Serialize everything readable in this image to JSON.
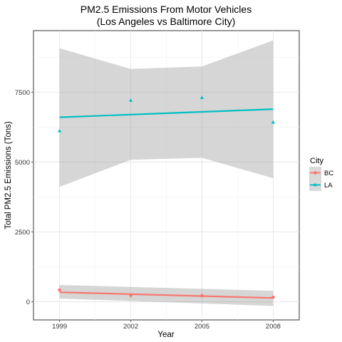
{
  "chart_data": {
    "type": "scatter",
    "title_line1": "PM2.5 Emissions From Motor Vehicles",
    "title_line2": "(Los Angeles vs Baltimore City)",
    "xlabel": "Year",
    "ylabel": "Total PM2.5 Emissions (Tons)",
    "x_ticks": [
      1999,
      2002,
      2005,
      2008
    ],
    "x_tick_labels": [
      "1999",
      "2002",
      "2005",
      "2008"
    ],
    "y_ticks": [
      0,
      2500,
      5000,
      7500
    ],
    "y_tick_labels": [
      "0",
      "2500",
      "5000",
      "7500"
    ],
    "xlim": [
      1997.9,
      2009.1
    ],
    "ylim": [
      -650,
      9700
    ],
    "grid": true,
    "legend": {
      "title": "City",
      "position": "right"
    },
    "series": [
      {
        "name": "BC",
        "color": "#F8766D",
        "marker": "circle",
        "x": [
          1999,
          2002,
          2005,
          2008
        ],
        "y": [
          420,
          230,
          215,
          160
        ],
        "fit": {
          "y_start": 340,
          "y_end": 135,
          "ci_lower_start": 115,
          "ci_lower_end": -150,
          "ci_upper_start": 600,
          "ci_upper_end": 390
        }
      },
      {
        "name": "LA",
        "color": "#00BFC4",
        "marker": "triangle",
        "x": [
          1999,
          2002,
          2005,
          2008
        ],
        "y": [
          6110,
          7200,
          7300,
          6420
        ],
        "fit": {
          "y_start": 6600,
          "y_end": 6890,
          "ci_x": [
            1999,
            2002,
            2005,
            2008
          ],
          "ci_lower": [
            4110,
            5080,
            5150,
            4420
          ],
          "ci_upper": [
            9070,
            8330,
            8420,
            9350
          ]
        }
      }
    ]
  }
}
